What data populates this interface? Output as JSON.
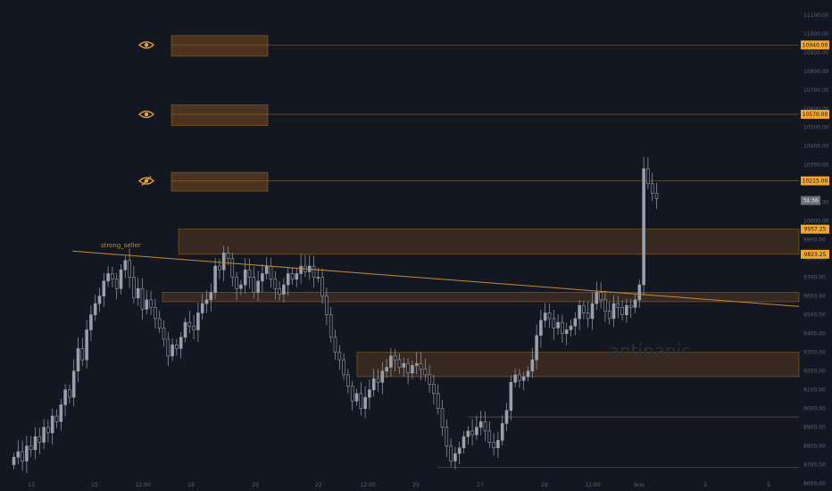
{
  "colors": {
    "background": "#131722",
    "candle": "#9aa0ab",
    "accent": "#f5a623",
    "zone_fill": "#7a4a1e",
    "axis_text": "#5d6373",
    "timer_bg": "#6b6f7a"
  },
  "price_axis": {
    "ticks": [
      "11100.00",
      "11000.00",
      "10900.00",
      "10800.00",
      "10700.00",
      "10600.00",
      "10500.00",
      "10400.00",
      "10300.00",
      "10200.00",
      "10100.00",
      "10000.00",
      "9900.00",
      "9800.00",
      "9700.00",
      "9600.00",
      "9500.00",
      "9400.00",
      "9300.00",
      "9200.00",
      "9100.00",
      "9000.00",
      "8900.00",
      "8800.00",
      "8700.00",
      "8600.00"
    ],
    "ylim": [
      8560,
      11180
    ]
  },
  "time_axis": {
    "labels": [
      "13",
      "15",
      "12:00",
      "18",
      "20",
      "22",
      "12:00",
      "25",
      "27",
      "29",
      "12:00",
      "Nov",
      "3",
      "5"
    ]
  },
  "price_tags": [
    {
      "label": "10940.00",
      "price": 10940
    },
    {
      "label": "10570.00",
      "price": 10570
    },
    {
      "label": "10215.00",
      "price": 10215
    },
    {
      "label": "9957.25",
      "price": 9957.25
    },
    {
      "label": "9823.25",
      "price": 9823.25
    }
  ],
  "countdown": {
    "label": "34:36",
    "price": 10110
  },
  "alert_icons": [
    {
      "icon": "eye-icon",
      "price": 10940
    },
    {
      "icon": "eye-icon",
      "price": 10570
    },
    {
      "icon": "eye-off-icon",
      "price": 10215
    }
  ],
  "trendline": {
    "label": "strong_seller"
  },
  "watermark": {
    "text": "antipanic"
  },
  "chart_data": {
    "type": "candlestick",
    "symbol_note": "",
    "ylim": [
      8560,
      11180
    ],
    "zones": [
      {
        "low": 10880,
        "high": 10990,
        "extent": "short"
      },
      {
        "low": 10510,
        "high": 10620,
        "extent": "short"
      },
      {
        "low": 10160,
        "high": 10260,
        "extent": "short"
      },
      {
        "low": 9823.25,
        "high": 9957.25,
        "extent": "full"
      },
      {
        "low": 9570,
        "high": 9620,
        "extent": "full"
      },
      {
        "low": 9170,
        "high": 9300,
        "extent": "full"
      }
    ],
    "horizontal_lines": [
      10940,
      10570,
      10215,
      8955,
      8685
    ],
    "trendline": {
      "from_bar": 14,
      "from_price": 9840,
      "to_bar": 122,
      "to_price": 9545
    },
    "closes": [
      8740,
      8770,
      8720,
      8800,
      8780,
      8850,
      8820,
      8900,
      8870,
      8960,
      8930,
      9020,
      9100,
      9060,
      9200,
      9320,
      9260,
      9420,
      9500,
      9560,
      9600,
      9680,
      9720,
      9690,
      9640,
      9740,
      9790,
      9700,
      9590,
      9640,
      9530,
      9580,
      9540,
      9480,
      9430,
      9370,
      9280,
      9340,
      9320,
      9380,
      9460,
      9440,
      9420,
      9510,
      9560,
      9580,
      9620,
      9760,
      9740,
      9830,
      9800,
      9700,
      9640,
      9660,
      9740,
      9700,
      9620,
      9680,
      9720,
      9760,
      9690,
      9640,
      9610,
      9660,
      9720,
      9690,
      9720,
      9760,
      9730,
      9760,
      9700,
      9700,
      9600,
      9500,
      9380,
      9300,
      9260,
      9180,
      9120,
      9040,
      9080,
      9000,
      9060,
      9100,
      9160,
      9140,
      9200,
      9220,
      9280,
      9260,
      9220,
      9240,
      9190,
      9230,
      9240,
      9210,
      9180,
      9130,
      9080,
      9000,
      8900,
      8800,
      8720,
      8760,
      8790,
      8850,
      8880,
      8860,
      8900,
      8930,
      8880,
      8820,
      8790,
      8830,
      8920,
      8990,
      9140,
      9180,
      9150,
      9170,
      9200,
      9260,
      9390,
      9470,
      9510,
      9480,
      9430,
      9460,
      9400,
      9420,
      9440,
      9480,
      9550,
      9510,
      9480,
      9560,
      9620,
      9580,
      9520,
      9480,
      9560,
      9540,
      9500,
      9550,
      9540,
      9580,
      9660,
      10280,
      10200,
      10150,
      10120
    ]
  }
}
